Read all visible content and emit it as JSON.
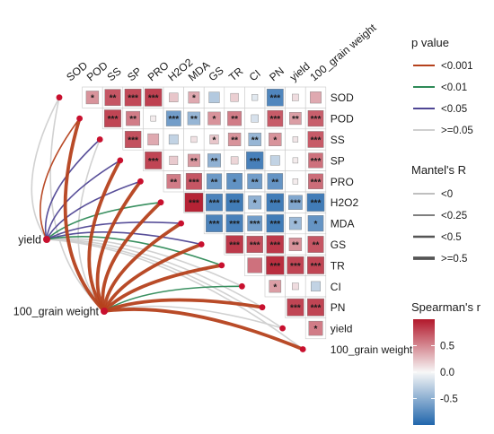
{
  "chart_data": {
    "type": "heatmap",
    "title": "",
    "variables": [
      "SOD",
      "POD",
      "SS",
      "SP",
      "PRO",
      "H2O2",
      "MDA",
      "GS",
      "TR",
      "CI",
      "PN",
      "yield",
      "100_grain weight"
    ],
    "row_labels": [
      "SOD",
      "POD",
      "SS",
      "SP",
      "PRO",
      "H2O2",
      "MDA",
      "GS",
      "TR",
      "CI",
      "PN",
      "yield",
      "100_grain weight"
    ],
    "col_labels": [
      "SOD",
      "POD",
      "SS",
      "SP",
      "PRO",
      "H2O2",
      "MDA",
      "GS",
      "TR",
      "CI",
      "PN",
      "yield",
      "100_grain weight"
    ],
    "spearman_r": [
      [
        null,
        0.45,
        0.72,
        0.78,
        0.82,
        0.22,
        0.35,
        -0.32,
        0.18,
        -0.1,
        -0.78,
        0.12,
        0.35
      ],
      [
        null,
        null,
        0.8,
        0.55,
        0.05,
        -0.62,
        -0.45,
        0.45,
        0.55,
        -0.15,
        0.7,
        0.4,
        0.68
      ],
      [
        null,
        null,
        null,
        0.75,
        0.35,
        -0.25,
        0.1,
        0.22,
        0.45,
        -0.45,
        0.45,
        0.08,
        0.7
      ],
      [
        null,
        null,
        null,
        null,
        0.8,
        0.2,
        0.42,
        -0.48,
        0.15,
        -0.82,
        -0.25,
        0.05,
        0.6
      ],
      [
        null,
        null,
        null,
        null,
        null,
        0.55,
        0.72,
        -0.65,
        -0.7,
        -0.62,
        -0.68,
        0.05,
        0.62
      ],
      [
        null,
        null,
        null,
        null,
        null,
        null,
        0.95,
        -0.8,
        -0.85,
        -0.48,
        -0.85,
        -0.55,
        -0.85
      ],
      [
        null,
        null,
        null,
        null,
        null,
        null,
        null,
        -0.8,
        -0.82,
        -0.62,
        -0.85,
        -0.42,
        -0.68
      ],
      [
        null,
        null,
        null,
        null,
        null,
        null,
        null,
        null,
        0.85,
        0.75,
        0.85,
        0.45,
        0.72
      ],
      [
        null,
        null,
        null,
        null,
        null,
        null,
        null,
        null,
        null,
        0.6,
        0.9,
        0.8,
        0.8
      ],
      [
        null,
        null,
        null,
        null,
        null,
        null,
        null,
        null,
        null,
        null,
        0.4,
        0.12,
        -0.25
      ],
      [
        null,
        null,
        null,
        null,
        null,
        null,
        null,
        null,
        null,
        null,
        null,
        0.8,
        0.8
      ],
      [
        null,
        null,
        null,
        null,
        null,
        null,
        null,
        null,
        null,
        null,
        null,
        null,
        0.55
      ],
      [
        null,
        null,
        null,
        null,
        null,
        null,
        null,
        null,
        null,
        null,
        null,
        null,
        null
      ]
    ],
    "significance": [
      [
        "",
        "*",
        "**",
        "***",
        "***",
        "",
        "*",
        "",
        "",
        "",
        "***",
        "",
        ""
      ],
      [
        "",
        "",
        "***",
        "**",
        "",
        "***",
        "**",
        "*",
        "**",
        "",
        "***",
        "**",
        "***"
      ],
      [
        "",
        "",
        "",
        "***",
        "",
        "",
        "",
        "*",
        "**",
        "**",
        "*",
        "",
        "***"
      ],
      [
        "",
        "",
        "",
        "",
        "***",
        "",
        "**",
        "**",
        "",
        "***",
        "",
        "",
        "***"
      ],
      [
        "",
        "",
        "",
        "",
        "",
        "**",
        "***",
        "**",
        "*",
        "**",
        "**",
        "",
        "***"
      ],
      [
        "",
        "",
        "",
        "",
        "",
        "",
        "***",
        "***",
        "***",
        "*",
        "***",
        "***",
        "***"
      ],
      [
        "",
        "",
        "",
        "",
        "",
        "",
        "",
        "***",
        "***",
        "***",
        "***",
        "*",
        "*"
      ],
      [
        "",
        "",
        "",
        "",
        "",
        "",
        "",
        "",
        "***",
        "***",
        "***",
        "**",
        "**"
      ],
      [
        "",
        "",
        "",
        "",
        "",
        "",
        "",
        "",
        "",
        "",
        "***",
        "***",
        "***"
      ],
      [
        "",
        "",
        "",
        "",
        "",
        "",
        "",
        "",
        "",
        "",
        "*",
        "",
        ""
      ],
      [
        "",
        "",
        "",
        "",
        "",
        "",
        "",
        "",
        "",
        "",
        "",
        "***",
        "***"
      ],
      [
        "",
        "",
        "",
        "",
        "",
        "",
        "",
        "",
        "",
        "",
        "",
        "",
        "*"
      ],
      [
        "",
        "",
        "",
        "",
        "",
        "",
        "",
        "",
        "",
        "",
        "",
        "",
        ""
      ]
    ],
    "mantel_nodes": [
      "yield",
      "100_grain weight"
    ],
    "mantel_edges": [
      {
        "from": "yield",
        "to": "SOD",
        "p": ">=0.05",
        "r": "<0.25"
      },
      {
        "from": "yield",
        "to": "POD",
        "p": "<0.001",
        "r": "<0.25"
      },
      {
        "from": "yield",
        "to": "SS",
        "p": "<0.05",
        "r": "<0.25"
      },
      {
        "from": "yield",
        "to": "SP",
        "p": "<0.05",
        "r": "<0.25"
      },
      {
        "from": "yield",
        "to": "PRO",
        "p": "<0.05",
        "r": "<0.25"
      },
      {
        "from": "yield",
        "to": "H2O2",
        "p": "<0.01",
        "r": "<0.25"
      },
      {
        "from": "yield",
        "to": "MDA",
        "p": "<0.05",
        "r": "<0.25"
      },
      {
        "from": "yield",
        "to": "GS",
        "p": "<0.05",
        "r": "<0.25"
      },
      {
        "from": "yield",
        "to": "TR",
        "p": "<0.01",
        "r": "<0.25"
      },
      {
        "from": "yield",
        "to": "CI",
        "p": ">=0.05",
        "r": "<0.25"
      },
      {
        "from": "yield",
        "to": "PN",
        "p": ">=0.05",
        "r": "<0.25"
      },
      {
        "from": "yield",
        "to": "yield",
        "p": ">=0.05",
        "r": "<0.25"
      },
      {
        "from": "yield",
        "to": "100_grain weight",
        "p": ">=0.05",
        "r": "<0.25"
      },
      {
        "from": "100_grain weight",
        "to": "SOD",
        "p": ">=0.05",
        "r": "<0.25"
      },
      {
        "from": "100_grain weight",
        "to": "POD",
        "p": "<0.001",
        "r": ">=0.5"
      },
      {
        "from": "100_grain weight",
        "to": "SS",
        "p": ">=0.05",
        "r": "<0.25"
      },
      {
        "from": "100_grain weight",
        "to": "SP",
        "p": "<0.001",
        "r": ">=0.5"
      },
      {
        "from": "100_grain weight",
        "to": "PRO",
        "p": "<0.001",
        "r": ">=0.5"
      },
      {
        "from": "100_grain weight",
        "to": "H2O2",
        "p": "<0.001",
        "r": ">=0.5"
      },
      {
        "from": "100_grain weight",
        "to": "MDA",
        "p": "<0.001",
        "r": ">=0.5"
      },
      {
        "from": "100_grain weight",
        "to": "GS",
        "p": "<0.001",
        "r": ">=0.5"
      },
      {
        "from": "100_grain weight",
        "to": "TR",
        "p": "<0.001",
        "r": ">=0.5"
      },
      {
        "from": "100_grain weight",
        "to": "CI",
        "p": "<0.01",
        "r": "<0.25"
      },
      {
        "from": "100_grain weight",
        "to": "PN",
        "p": "<0.001",
        "r": ">=0.5"
      },
      {
        "from": "100_grain weight",
        "to": "yield",
        "p": ">=0.05",
        "r": "<0.25"
      },
      {
        "from": "100_grain weight",
        "to": "100_grain weight",
        "p": "<0.001",
        "r": ">=0.5"
      }
    ],
    "legend_p": {
      "title": "p value",
      "items": [
        {
          "label": "<0.001",
          "color": "#b5411c"
        },
        {
          "label": "<0.01",
          "color": "#2e8a57"
        },
        {
          "label": "<0.05",
          "color": "#4f4694"
        },
        {
          "label": ">=0.05",
          "color": "#cfcfcf"
        }
      ]
    },
    "legend_mantel": {
      "title": "Mantel's R",
      "items": [
        {
          "label": "<0"
        },
        {
          "label": "<0.25"
        },
        {
          "label": "<0.5"
        },
        {
          "label": ">=0.5"
        }
      ]
    },
    "legend_colorbar": {
      "title": "Spearman's r",
      "ticks": [
        {
          "value": 0.5,
          "label": "0.5"
        },
        {
          "value": 0.0,
          "label": "0.0"
        },
        {
          "value": -0.5,
          "label": "-0.5"
        }
      ],
      "range": [
        -1,
        1
      ],
      "colors": {
        "neg": "#2166ac",
        "mid": "#f7f7f7",
        "pos": "#b2182b"
      }
    },
    "node_color": "#c8102e"
  }
}
